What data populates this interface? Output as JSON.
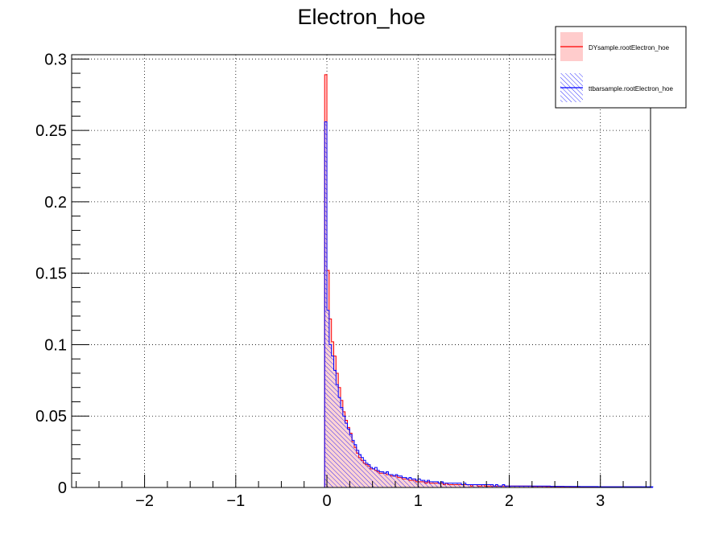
{
  "chart_data": {
    "type": "histogram",
    "title": "Electron_hoe",
    "xlim": [
      -2.8,
      3.55
    ],
    "ylim": [
      0,
      0.303
    ],
    "x_ticks": [
      -2,
      -1,
      0,
      1,
      2,
      3
    ],
    "x_tick_labels": [
      "−2",
      "−1",
      "0",
      "1",
      "2",
      "3"
    ],
    "y_ticks": [
      0,
      0.05,
      0.1,
      0.15,
      0.2,
      0.25,
      0.3
    ],
    "y_tick_labels": [
      "0",
      "0.05",
      "0.1",
      "0.15",
      "0.2",
      "0.25",
      "0.3"
    ],
    "grid": true,
    "legend_position": "top-right",
    "bin_width": 0.025,
    "bins_start": -0.025,
    "series": [
      {
        "name": "DYsample.rootElectron_hoe",
        "color": "#ff0000",
        "fill_color": "#ffcccc",
        "style": "solid-fill",
        "values": [
          0.289,
          0.152,
          0.118,
          0.102,
          0.092,
          0.08,
          0.07,
          0.061,
          0.053,
          0.047,
          0.042,
          0.038,
          0.032,
          0.028,
          0.024,
          0.021,
          0.019,
          0.017,
          0.016,
          0.015,
          0.013,
          0.013,
          0.012,
          0.011,
          0.01,
          0.01,
          0.01,
          0.009,
          0.009,
          0.008,
          0.008,
          0.008,
          0.007,
          0.007,
          0.006,
          0.006,
          0.006,
          0.005,
          0.005,
          0.005,
          0.004,
          0.004,
          0.004,
          0.004,
          0.003,
          0.004,
          0.003,
          0.003,
          0.003,
          0.003,
          0.003,
          0.003,
          0.002,
          0.003,
          0.002,
          0.002,
          0.002,
          0.002,
          0.002,
          0.002,
          0.002,
          0.002,
          0.002,
          0.002,
          0.001,
          0.002,
          0.002,
          0.001,
          0.001,
          0.002,
          0.001,
          0.001,
          0.001,
          0.001,
          0.001,
          0.001,
          0.001,
          0.001,
          0.001,
          0.001,
          0.001,
          0.001,
          0.001,
          0.001,
          0.001,
          0.001,
          0.001,
          0.001,
          0.001,
          0.001,
          0.001,
          0.0008,
          0.0008,
          0.0008,
          0.0008,
          0.0008,
          0.0008,
          0.0007,
          0.0007,
          0.0007,
          0.0007,
          0.0007,
          0.0006,
          0.0006,
          0.0006,
          0.0006,
          0.0006,
          0.0006,
          0.0005,
          0.0005,
          0.0005,
          0.0005,
          0.0005,
          0.0005,
          0.0005,
          0.0005,
          0.0004,
          0.0004,
          0.0004,
          0.0004,
          0.0004,
          0.0004,
          0.0004,
          0.0004,
          0.0004,
          0.0004,
          0.0004,
          0.0004,
          0.0004,
          0.0004,
          0.0004,
          0.0004,
          0.0004,
          0.0004,
          0.0004,
          0.0004,
          0.0004,
          0.0004,
          0.0004
        ]
      },
      {
        "name": "ttbarsample.rootElectron_hoe",
        "color": "#0000ff",
        "fill_color": "#0000ff",
        "style": "hatched",
        "values": [
          0.256,
          0.124,
          0.1,
          0.092,
          0.082,
          0.072,
          0.063,
          0.056,
          0.05,
          0.045,
          0.041,
          0.037,
          0.033,
          0.03,
          0.026,
          0.023,
          0.021,
          0.019,
          0.017,
          0.016,
          0.014,
          0.013,
          0.014,
          0.012,
          0.011,
          0.011,
          0.01,
          0.011,
          0.009,
          0.009,
          0.008,
          0.009,
          0.008,
          0.008,
          0.007,
          0.007,
          0.006,
          0.007,
          0.006,
          0.006,
          0.005,
          0.006,
          0.005,
          0.005,
          0.004,
          0.005,
          0.004,
          0.004,
          0.004,
          0.004,
          0.003,
          0.004,
          0.003,
          0.003,
          0.003,
          0.003,
          0.003,
          0.003,
          0.003,
          0.003,
          0.002,
          0.003,
          0.002,
          0.002,
          0.002,
          0.002,
          0.002,
          0.002,
          0.002,
          0.002,
          0.002,
          0.002,
          0.002,
          0.002,
          0.001,
          0.002,
          0.001,
          0.001,
          0.002,
          0.001,
          0.001,
          0.001,
          0.001,
          0.001,
          0.001,
          0.001,
          0.001,
          0.001,
          0.001,
          0.001,
          0.001,
          0.001,
          0.001,
          0.001,
          0.001,
          0.001,
          0.001,
          0.001,
          0.001,
          0.0008,
          0.0008,
          0.0008,
          0.0008,
          0.0008,
          0.0008,
          0.0007,
          0.0007,
          0.0007,
          0.0007,
          0.0007,
          0.0007,
          0.0007,
          0.0006,
          0.0006,
          0.0006,
          0.0006,
          0.0006,
          0.0006,
          0.0006,
          0.0006,
          0.0005,
          0.0005,
          0.0005,
          0.0005,
          0.0005,
          0.0005,
          0.0005,
          0.0005,
          0.0005,
          0.0005,
          0.0005,
          0.0005,
          0.0005,
          0.0005,
          0.0005,
          0.0005,
          0.0005,
          0.0005,
          0.0005,
          0.0005,
          0.0005,
          0.0005,
          0.0005,
          0.0005
        ]
      }
    ]
  }
}
